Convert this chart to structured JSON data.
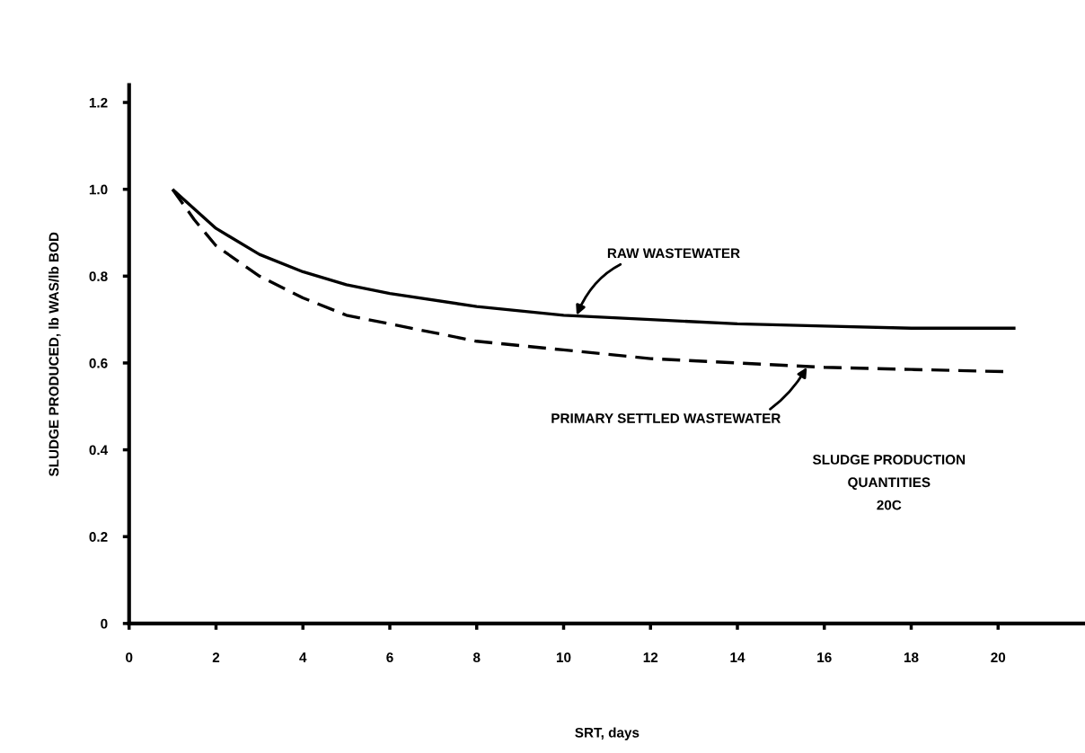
{
  "chart_data": {
    "type": "line",
    "xlabel": "SRT, days",
    "ylabel": "SLUDGE PRODUCED, lb WAS/lb BOD",
    "series": [
      {
        "color": "#000000",
        "line_style": "solid",
        "x": [
          1,
          1.5,
          2,
          3,
          4,
          5,
          6,
          8,
          10,
          12,
          14,
          16,
          18,
          20.4
        ],
        "values": [
          1.0,
          0.955,
          0.91,
          0.85,
          0.81,
          0.78,
          0.76,
          0.73,
          0.71,
          0.7,
          0.69,
          0.685,
          0.68,
          0.68
        ]
      },
      {
        "color": "#000000",
        "line_style": "dashed",
        "x": [
          1,
          1.5,
          2,
          3,
          4,
          5,
          6,
          8,
          10,
          12,
          14,
          16,
          18,
          20.2
        ],
        "values": [
          1.0,
          0.93,
          0.87,
          0.8,
          0.75,
          0.71,
          0.69,
          0.65,
          0.63,
          0.61,
          0.6,
          0.59,
          0.585,
          0.58
        ]
      }
    ],
    "xlim": [
      0,
      22
    ],
    "xticks": [
      0,
      2,
      4,
      6,
      8,
      10,
      12,
      14,
      16,
      18,
      20
    ],
    "ylim": [
      0,
      1.24
    ],
    "yticks": [
      0,
      0.2,
      0.4,
      0.6,
      0.8,
      {
        "value": 1,
        "label": "1.0"
      },
      1.2
    ],
    "grid": false,
    "marker": "none",
    "annotations": [
      {
        "text": "RAW WASTEWATER",
        "x": 10.3,
        "y": 0.71
      },
      {
        "text": "PRIMARY SETTLED WASTEWATER",
        "x": 15.6,
        "y": 0.59
      },
      "SLUDGE PRODUCTION\nQUANTITIES\n20C"
    ]
  }
}
